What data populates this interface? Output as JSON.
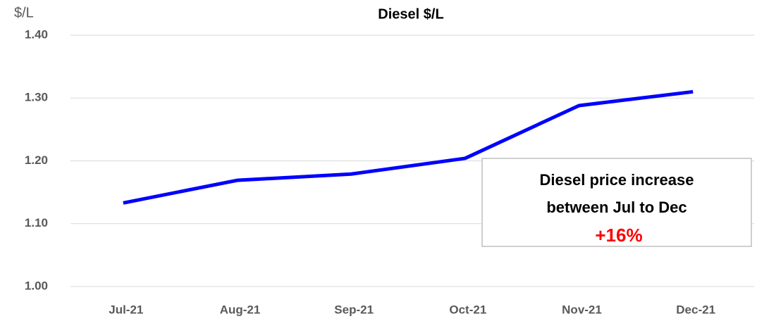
{
  "chart_data": {
    "type": "line",
    "title": "Diesel $/L",
    "y_label": "$/L",
    "categories": [
      "Jul-21",
      "Aug-21",
      "Sep-21",
      "Oct-21",
      "Nov-21",
      "Dec-21"
    ],
    "series": [
      {
        "name": "Diesel",
        "color": "#0000ff",
        "values": [
          1.133,
          1.169,
          1.179,
          1.204,
          1.288,
          1.31
        ]
      }
    ],
    "ylim": [
      1.0,
      1.4
    ],
    "yticks": [
      {
        "value": 1.0,
        "label": "1.00"
      },
      {
        "value": 1.1,
        "label": "1.10"
      },
      {
        "value": 1.2,
        "label": "1.20"
      },
      {
        "value": 1.3,
        "label": "1.30"
      },
      {
        "value": 1.4,
        "label": "1.40"
      }
    ],
    "grid": true,
    "annotation": {
      "lines": [
        "Diesel price increase",
        "between Jul to Dec"
      ],
      "highlight": "+16%"
    }
  }
}
